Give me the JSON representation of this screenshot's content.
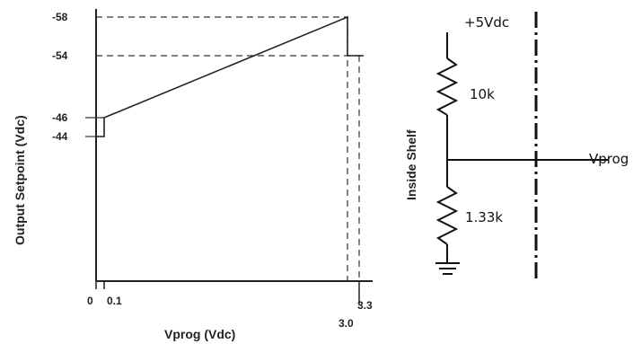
{
  "graph": {
    "y_axis_title": "Output Setpoint (Vdc)",
    "x_axis_title": "Vprog (Vdc)",
    "y_ticks": [
      "-58",
      "-54",
      "-46",
      "-44"
    ],
    "x_ticks": [
      "0",
      "0.1",
      "3.0",
      "3.3"
    ]
  },
  "circuit": {
    "supply_label": "+5Vdc",
    "resistor_top_label": "10k",
    "resistor_bottom_label": "1.33k",
    "side_label": "Inside Shelf",
    "output_label": "Vprog"
  },
  "chart_data": {
    "type": "line",
    "xlabel": "Vprog (Vdc)",
    "ylabel": "Output Setpoint (Vdc)",
    "xlim": [
      0,
      3.3
    ],
    "ylim": [
      0,
      -58
    ],
    "series": [
      {
        "points": [
          [
            0,
            -44
          ],
          [
            0.1,
            -44
          ],
          [
            0.1,
            -46
          ],
          [
            3.0,
            -58
          ],
          [
            3.0,
            -54
          ],
          [
            3.3,
            -54
          ]
        ]
      }
    ],
    "reference_lines": [
      {
        "y": -58,
        "style": "dashed"
      },
      {
        "y": -54,
        "style": "dashed"
      },
      {
        "y": -46,
        "style": "solid"
      },
      {
        "y": -44,
        "style": "solid"
      },
      {
        "x": 3.0,
        "style": "dashed"
      },
      {
        "x": 3.3,
        "style": "dashed"
      }
    ]
  }
}
